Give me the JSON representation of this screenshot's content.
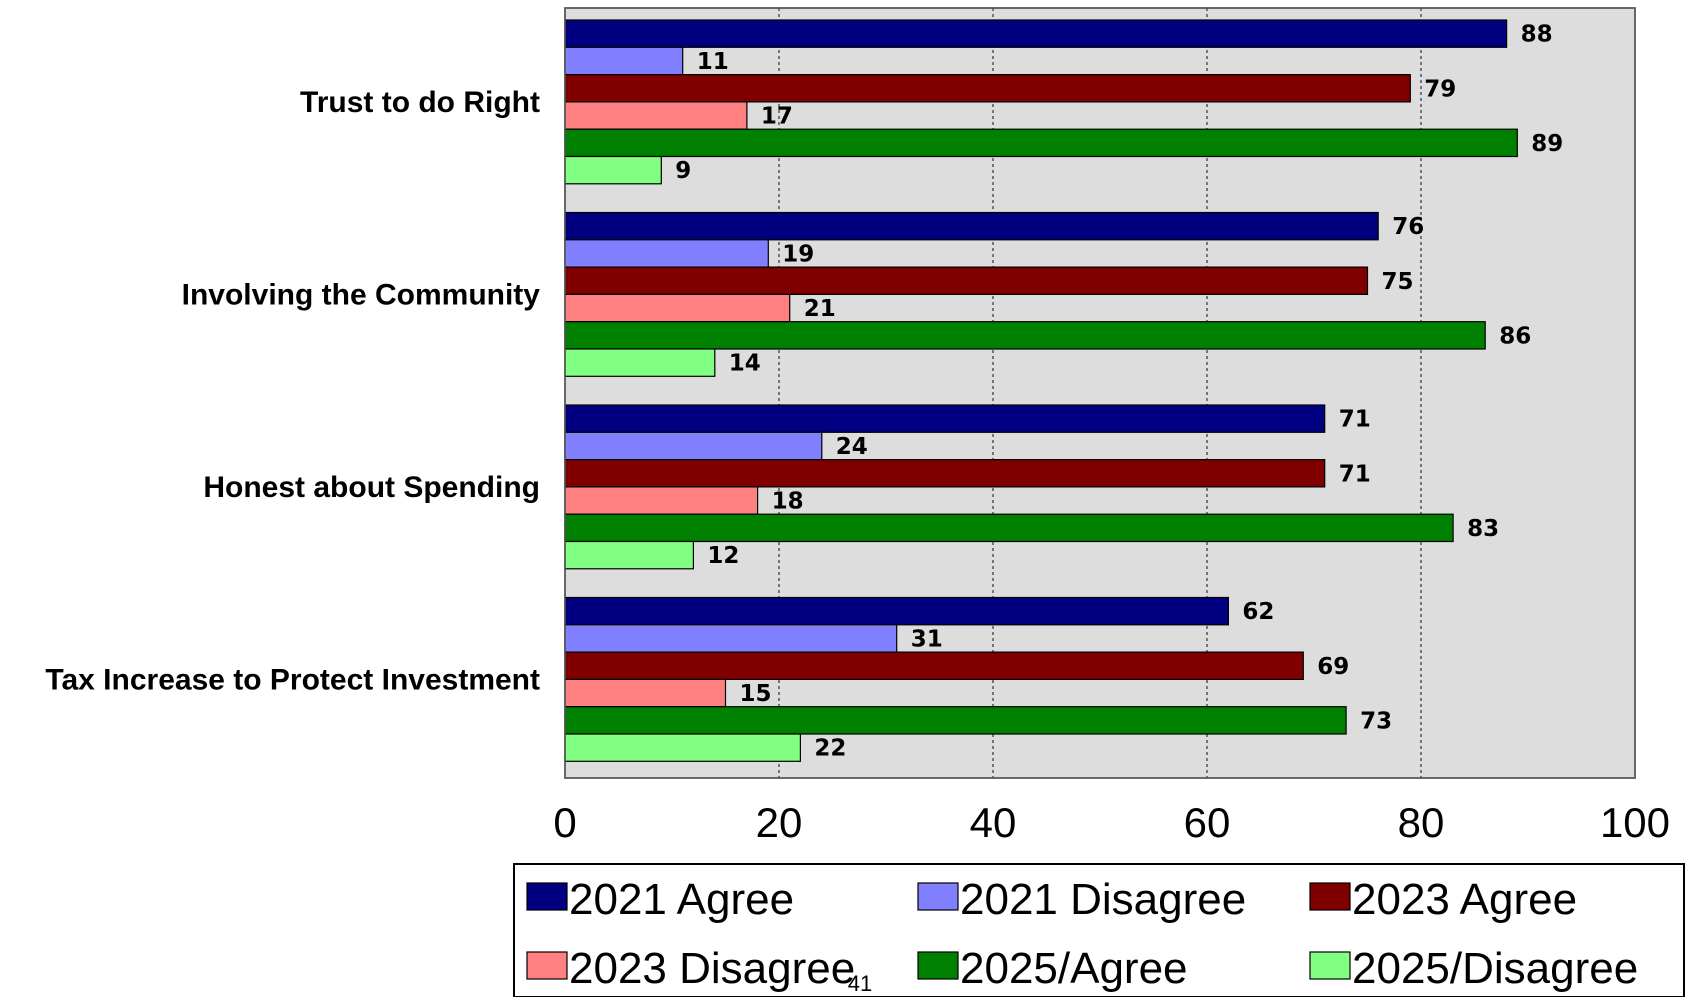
{
  "chart_data": {
    "type": "bar",
    "orientation": "horizontal",
    "categories": [
      "Trust to do Right",
      "Involving the Community",
      "Honest about Spending",
      "Tax Increase to Protect Investment"
    ],
    "series": [
      {
        "name": "2021 Agree",
        "color": "#000080",
        "values": [
          88,
          76,
          71,
          62
        ]
      },
      {
        "name": "2021 Disagree",
        "color": "#8080ff",
        "values": [
          11,
          19,
          24,
          31
        ]
      },
      {
        "name": "2023 Agree",
        "color": "#800000",
        "values": [
          79,
          75,
          71,
          69
        ]
      },
      {
        "name": "2023 Disagree",
        "color": "#ff8080",
        "values": [
          17,
          21,
          18,
          15
        ]
      },
      {
        "name": "2025/Agree",
        "color": "#008000",
        "values": [
          89,
          86,
          83,
          73
        ]
      },
      {
        "name": "2025/Disagree",
        "color": "#80ff80",
        "values": [
          9,
          14,
          12,
          22
        ]
      }
    ],
    "xlim": [
      0,
      100
    ],
    "xticks": [
      0,
      20,
      40,
      60,
      80,
      100
    ],
    "grid": true,
    "plot_background": "#dddddd",
    "legend_position": "bottom"
  },
  "page_number": "41"
}
